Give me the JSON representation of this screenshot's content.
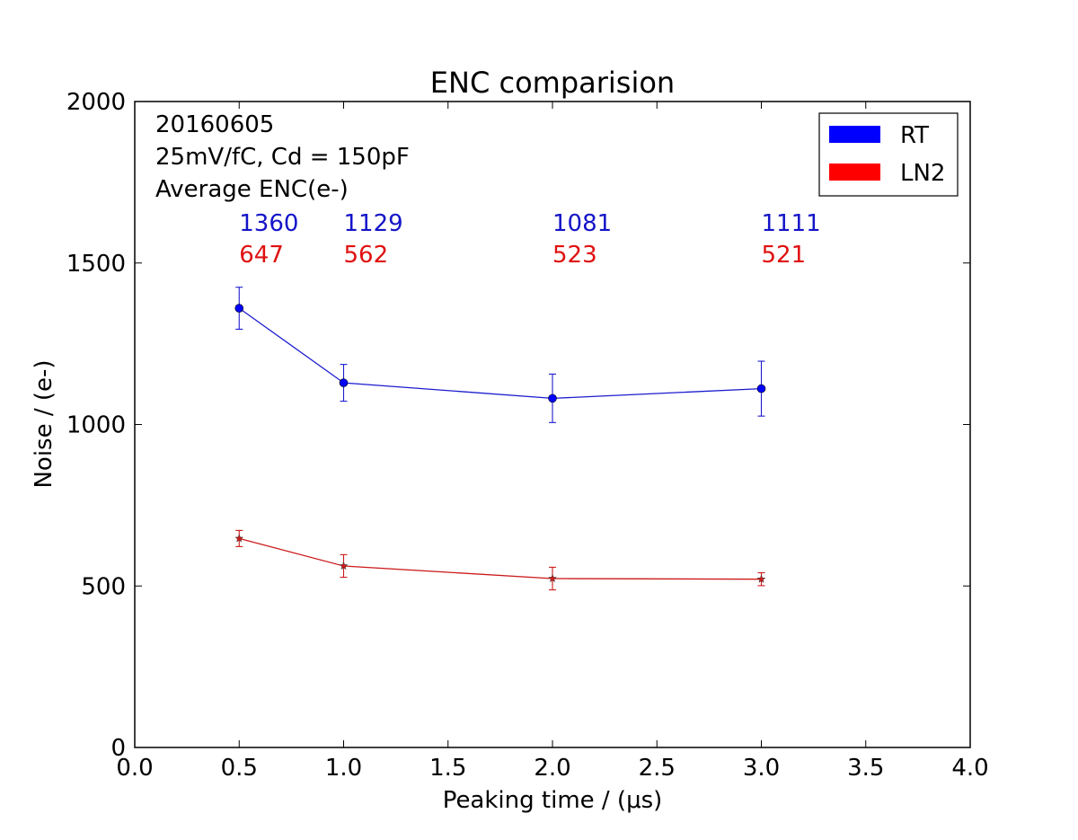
{
  "chart_data": {
    "type": "line",
    "title": "ENC comparision",
    "xlabel": "Peaking time / (μs)",
    "ylabel": "Noise /  (e-)",
    "xlim": [
      0.0,
      4.0
    ],
    "ylim": [
      0,
      2000
    ],
    "xticks": [
      0.0,
      0.5,
      1.0,
      1.5,
      2.0,
      2.5,
      3.0,
      3.5,
      4.0
    ],
    "xtick_labels": [
      "0.0",
      "0.5",
      "1.0",
      "1.5",
      "2.0",
      "2.5",
      "3.0",
      "3.5",
      "4.0"
    ],
    "yticks": [
      0,
      500,
      1000,
      1500,
      2000
    ],
    "ytick_labels": [
      "0",
      "500",
      "1000",
      "1500",
      "2000"
    ],
    "grid": false,
    "annotations": [
      "20160605",
      "25mV/fC, Cd = 150pF",
      "Average ENC(e-)"
    ],
    "legend_position": "top-right",
    "series": [
      {
        "name": "RT",
        "color": "#0000ff",
        "line_color": "#1c1ccf",
        "marker": "circle",
        "x": [
          0.5,
          1.0,
          2.0,
          3.0
        ],
        "values": [
          1360,
          1129,
          1081,
          1111
        ],
        "errors": [
          65,
          57,
          75,
          85
        ],
        "value_labels": [
          "1360",
          "1129",
          "1081",
          "1111"
        ],
        "label_color": "#1414c8"
      },
      {
        "name": "LN2",
        "color": "#ff0000",
        "line_color": "#cc1a1a",
        "marker": "star",
        "x": [
          0.5,
          1.0,
          2.0,
          3.0
        ],
        "values": [
          647,
          562,
          523,
          521
        ],
        "errors": [
          25,
          35,
          35,
          20
        ],
        "value_labels": [
          "647",
          "562",
          "523",
          "521"
        ],
        "label_color": "#e01010"
      }
    ]
  }
}
